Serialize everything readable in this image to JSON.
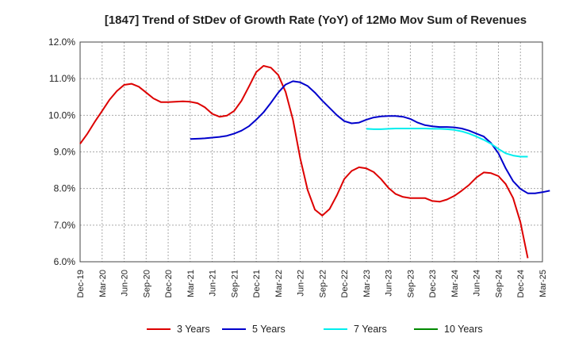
{
  "chart_data": {
    "type": "line",
    "title": "[1847]  Trend of StDev of Growth Rate (YoY) of 12Mo Mov Sum of Revenues",
    "xlabel": "",
    "ylabel": "",
    "ylim": [
      6.0,
      12.0
    ],
    "yticks": [
      6.0,
      7.0,
      8.0,
      9.0,
      10.0,
      11.0,
      12.0
    ],
    "ytick_labels": [
      "6.0%",
      "7.0%",
      "8.0%",
      "9.0%",
      "10.0%",
      "11.0%",
      "12.0%"
    ],
    "x_start": "Dec-19",
    "x_tick_labels": [
      "Dec-19",
      "Mar-20",
      "Jun-20",
      "Sep-20",
      "Dec-20",
      "Mar-21",
      "Jun-21",
      "Sep-21",
      "Dec-21",
      "Mar-22",
      "Jun-22",
      "Sep-22",
      "Dec-22",
      "Mar-23",
      "Jun-23",
      "Sep-23",
      "Dec-23",
      "Mar-24",
      "Jun-24",
      "Sep-24",
      "Dec-24",
      "Mar-25"
    ],
    "grid": true,
    "legend_position": "bottom",
    "series": [
      {
        "name": "3 Years",
        "color": "#dd0000",
        "start_month_index": 0,
        "values": [
          9.22,
          9.5,
          9.82,
          10.12,
          10.42,
          10.66,
          10.83,
          10.86,
          10.78,
          10.62,
          10.46,
          10.36,
          10.36,
          10.37,
          10.38,
          10.37,
          10.33,
          10.22,
          10.04,
          9.96,
          9.99,
          10.12,
          10.4,
          10.78,
          11.18,
          11.35,
          11.3,
          11.1,
          10.64,
          9.88,
          8.82,
          7.96,
          7.42,
          7.26,
          7.44,
          7.82,
          8.26,
          8.48,
          8.58,
          8.55,
          8.45,
          8.26,
          8.02,
          7.85,
          7.77,
          7.74,
          7.74,
          7.74,
          7.66,
          7.64,
          7.7,
          7.8,
          7.94,
          8.1,
          8.3,
          8.44,
          8.42,
          8.34,
          8.12,
          7.74,
          7.08,
          6.1
        ]
      },
      {
        "name": "5 Years",
        "color": "#0000cc",
        "start_month_index": 15,
        "values": [
          9.35,
          9.36,
          9.37,
          9.39,
          9.41,
          9.44,
          9.5,
          9.58,
          9.7,
          9.88,
          10.08,
          10.34,
          10.62,
          10.84,
          10.93,
          10.9,
          10.8,
          10.62,
          10.4,
          10.2,
          10.0,
          9.84,
          9.78,
          9.8,
          9.88,
          9.94,
          9.97,
          9.98,
          9.98,
          9.96,
          9.9,
          9.8,
          9.73,
          9.7,
          9.68,
          9.68,
          9.67,
          9.64,
          9.58,
          9.5,
          9.42,
          9.24,
          8.96,
          8.55,
          8.2,
          7.99,
          7.87,
          7.87,
          7.9,
          7.94
        ]
      },
      {
        "name": "7 Years",
        "color": "#00eeee",
        "start_month_index": 39,
        "values": [
          9.63,
          9.62,
          9.62,
          9.63,
          9.64,
          9.64,
          9.64,
          9.64,
          9.64,
          9.63,
          9.63,
          9.62,
          9.6,
          9.56,
          9.5,
          9.42,
          9.33,
          9.22,
          9.08,
          8.96,
          8.9,
          8.87,
          8.87
        ]
      },
      {
        "name": "10 Years",
        "color": "#008800",
        "start_month_index": 0,
        "values": []
      }
    ]
  }
}
